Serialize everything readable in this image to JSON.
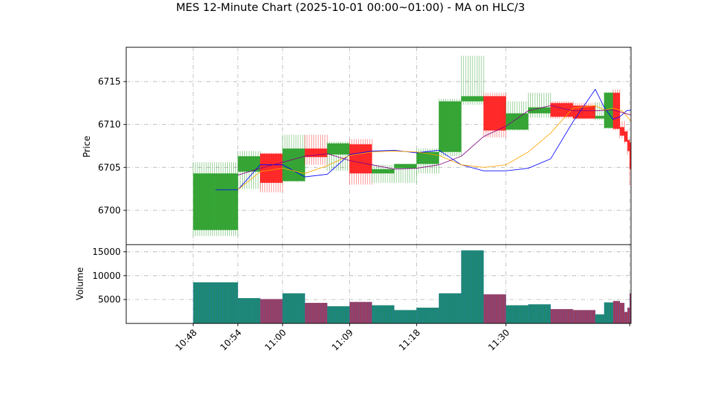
{
  "chart_data": {
    "type": "candlestick",
    "title": "MES 12-Minute Chart (2025-10-01 00:00~01:00) - MA on HLC/3",
    "price_panel": {
      "ylabel": "Price",
      "ylim": [
        6696.0,
        6719.0
      ],
      "yticks": [
        6700,
        6705,
        6710,
        6715
      ],
      "grid": true
    },
    "volume_panel": {
      "ylabel": "Volume",
      "ylim": [
        0,
        16500
      ],
      "yticks": [
        5000,
        10000,
        15000
      ],
      "ytick_labels": [
        "5000",
        "10000",
        "15000"
      ],
      "grid": true
    },
    "xlim": [
      10.65,
      11.78
    ],
    "x_ticks": [
      {
        "x": 10.8,
        "label": "10:48"
      },
      {
        "x": 10.9,
        "label": "10:54"
      },
      {
        "x": 11.0,
        "label": "11:00"
      },
      {
        "x": 11.15,
        "label": "11:09"
      },
      {
        "x": 11.3,
        "label": "11:18"
      },
      {
        "x": 11.5,
        "label": "11:30"
      }
    ],
    "candles": [
      {
        "x0": 10.8,
        "x1": 10.9,
        "open": 6697.7,
        "high": 6705.6,
        "low": 6697.0,
        "close": 6704.3,
        "volume": 8600
      },
      {
        "x0": 10.9,
        "x1": 10.95,
        "open": 6704.5,
        "high": 6706.9,
        "low": 6702.5,
        "close": 6706.3,
        "volume": 5300
      },
      {
        "x0": 10.95,
        "x1": 11.0,
        "open": 6706.6,
        "high": 6706.7,
        "low": 6702.1,
        "close": 6703.2,
        "volume": 5100
      },
      {
        "x0": 11.0,
        "x1": 11.05,
        "open": 6703.4,
        "high": 6708.8,
        "low": 6703.3,
        "close": 6707.2,
        "volume": 6300
      },
      {
        "x0": 11.05,
        "x1": 11.1,
        "open": 6707.2,
        "high": 6708.8,
        "low": 6705.3,
        "close": 6706.2,
        "volume": 4300
      },
      {
        "x0": 11.1,
        "x1": 11.15,
        "open": 6706.5,
        "high": 6708.0,
        "low": 6704.6,
        "close": 6707.8,
        "volume": 3600
      },
      {
        "x0": 11.15,
        "x1": 11.2,
        "open": 6707.7,
        "high": 6708.3,
        "low": 6703.0,
        "close": 6704.3,
        "volume": 4500
      },
      {
        "x0": 11.2,
        "x1": 11.25,
        "open": 6704.3,
        "high": 6705.3,
        "low": 6703.2,
        "close": 6704.8,
        "volume": 3800
      },
      {
        "x0": 11.25,
        "x1": 11.3,
        "open": 6704.9,
        "high": 6705.4,
        "low": 6703.2,
        "close": 6705.4,
        "volume": 2800
      },
      {
        "x0": 11.3,
        "x1": 11.35,
        "open": 6705.4,
        "high": 6707.2,
        "low": 6704.3,
        "close": 6706.8,
        "volume": 3300
      },
      {
        "x0": 11.35,
        "x1": 11.4,
        "open": 6706.8,
        "high": 6713.0,
        "low": 6706.3,
        "close": 6712.7,
        "volume": 6300
      },
      {
        "x0": 11.4,
        "x1": 11.45,
        "open": 6712.7,
        "high": 6718.0,
        "low": 6712.3,
        "close": 6713.3,
        "volume": 15300
      },
      {
        "x0": 11.45,
        "x1": 11.5,
        "open": 6713.3,
        "high": 6713.7,
        "low": 6708.5,
        "close": 6709.3,
        "volume": 6100
      },
      {
        "x0": 11.5,
        "x1": 11.55,
        "open": 6709.4,
        "high": 6712.7,
        "low": 6709.3,
        "close": 6711.3,
        "volume": 3800
      },
      {
        "x0": 11.55,
        "x1": 11.6,
        "open": 6711.3,
        "high": 6713.7,
        "low": 6710.8,
        "close": 6712.0,
        "volume": 4000
      },
      {
        "x0": 11.6,
        "x1": 11.65,
        "open": 6712.5,
        "high": 6712.7,
        "low": 6710.7,
        "close": 6710.9,
        "volume": 3000
      },
      {
        "x0": 11.65,
        "x1": 11.7,
        "open": 6712.2,
        "high": 6712.5,
        "low": 6710.6,
        "close": 6710.7,
        "volume": 2800
      },
      {
        "x0": 11.7,
        "x1": 11.72,
        "open": 6710.7,
        "high": 6712.6,
        "low": 6710.5,
        "close": 6711.0,
        "volume": 1900
      },
      {
        "x0": 11.72,
        "x1": 11.74,
        "open": 6709.6,
        "high": 6713.8,
        "low": 6709.5,
        "close": 6713.7,
        "volume": 4400
      },
      {
        "x0": 11.74,
        "x1": 11.755,
        "open": 6713.7,
        "high": 6714.1,
        "low": 6709.3,
        "close": 6709.5,
        "volume": 4700
      },
      {
        "x0": 11.755,
        "x1": 11.765,
        "open": 6709.7,
        "high": 6710.4,
        "low": 6708.4,
        "close": 6708.7,
        "volume": 4300
      },
      {
        "x0": 11.765,
        "x1": 11.772,
        "open": 6709.2,
        "high": 6709.4,
        "low": 6707.8,
        "close": 6708.0,
        "volume": 2400
      },
      {
        "x0": 11.772,
        "x1": 11.777,
        "open": 6708.2,
        "high": 6708.3,
        "low": 6706.5,
        "close": 6706.9,
        "volume": 3300
      },
      {
        "x0": 11.777,
        "x1": 11.78,
        "open": 6707.9,
        "high": 6708.0,
        "low": 6702.9,
        "close": 6704.8,
        "volume": 6300
      }
    ],
    "ma_series": [
      {
        "color": "#0000ff",
        "points": [
          [
            10.85,
            6702.4
          ],
          [
            10.9,
            6702.4
          ],
          [
            10.95,
            6705.3
          ],
          [
            11.0,
            6705.3
          ],
          [
            11.05,
            6703.9
          ],
          [
            11.1,
            6704.2
          ],
          [
            11.15,
            6706.5
          ],
          [
            11.2,
            6706.9
          ],
          [
            11.25,
            6707.0
          ],
          [
            11.3,
            6706.7
          ],
          [
            11.35,
            6707.0
          ],
          [
            11.4,
            6705.3
          ],
          [
            11.45,
            6704.6
          ],
          [
            11.5,
            6704.6
          ],
          [
            11.55,
            6704.9
          ],
          [
            11.6,
            6706.0
          ],
          [
            11.65,
            6710.3
          ],
          [
            11.7,
            6714.1
          ],
          [
            11.72,
            6712.0
          ],
          [
            11.74,
            6710.6
          ],
          [
            11.755,
            6710.9
          ],
          [
            11.77,
            6711.6
          ],
          [
            11.78,
            6711.7
          ]
        ]
      },
      {
        "color": "#ffa500",
        "points": [
          [
            10.9,
            6702.4
          ],
          [
            10.95,
            6704.5
          ],
          [
            11.0,
            6704.9
          ],
          [
            11.05,
            6704.3
          ],
          [
            11.1,
            6705.2
          ],
          [
            11.15,
            6706.4
          ],
          [
            11.2,
            6706.8
          ],
          [
            11.25,
            6706.9
          ],
          [
            11.3,
            6706.8
          ],
          [
            11.35,
            6706.4
          ],
          [
            11.4,
            6705.3
          ],
          [
            11.45,
            6705.0
          ],
          [
            11.5,
            6705.3
          ],
          [
            11.55,
            6706.8
          ],
          [
            11.6,
            6709.0
          ],
          [
            11.65,
            6711.9
          ],
          [
            11.7,
            6712.2
          ],
          [
            11.72,
            6711.7
          ],
          [
            11.74,
            6711.9
          ],
          [
            11.76,
            6711.6
          ],
          [
            11.78,
            6710.4
          ]
        ]
      },
      {
        "color": "#800080",
        "points": [
          [
            10.9,
            6704.1
          ],
          [
            10.95,
            6704.9
          ],
          [
            11.0,
            6705.6
          ],
          [
            11.05,
            6706.3
          ],
          [
            11.1,
            6706.6
          ],
          [
            11.15,
            6705.8
          ],
          [
            11.2,
            6705.3
          ],
          [
            11.25,
            6704.8
          ],
          [
            11.3,
            6704.9
          ],
          [
            11.35,
            6705.3
          ],
          [
            11.4,
            6706.3
          ],
          [
            11.45,
            6708.6
          ],
          [
            11.5,
            6709.8
          ],
          [
            11.55,
            6711.6
          ],
          [
            11.6,
            6712.2
          ],
          [
            11.65,
            6711.6
          ],
          [
            11.7,
            6711.6
          ],
          [
            11.74,
            6711.7
          ],
          [
            11.78,
            6711.1
          ]
        ]
      }
    ]
  }
}
